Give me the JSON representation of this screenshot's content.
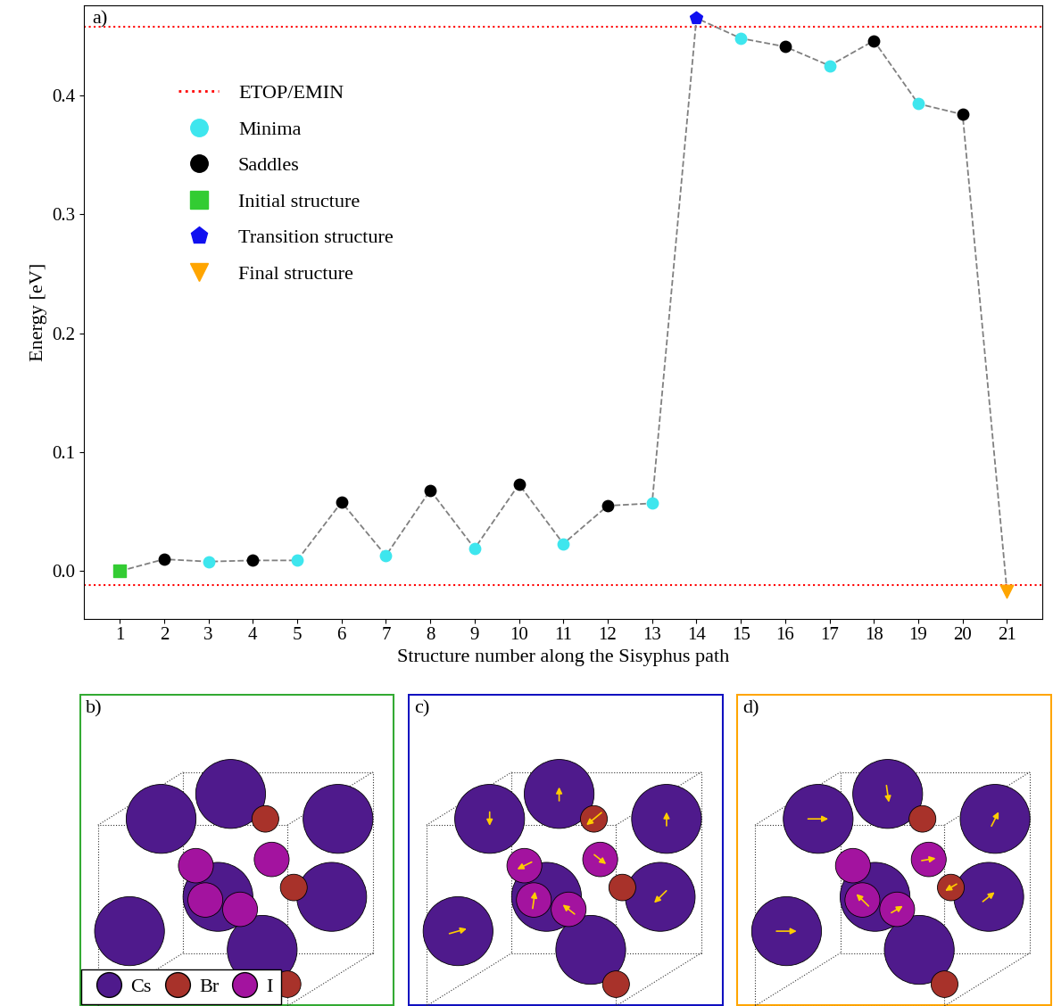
{
  "chart_data": {
    "type": "line",
    "panel_label": "a)",
    "x_label": "Structure number along the Sisyphus path",
    "y_label": "Energy [eV]",
    "color": "#808080",
    "line_style": "dashed",
    "xlim": [
      0.2,
      21.8
    ],
    "xticks": [
      1,
      2,
      3,
      4,
      5,
      6,
      7,
      8,
      9,
      10,
      11,
      12,
      13,
      14,
      15,
      16,
      17,
      18,
      19,
      20,
      21
    ],
    "ylim": [
      -0.04,
      0.476
    ],
    "yticks": [
      0.0,
      0.1,
      0.2,
      0.3,
      0.4
    ],
    "legend": "upper left",
    "reference_lines": {
      "name": "ETOP/EMIN",
      "color": "#ff0000",
      "line_style": "dotted",
      "values": [
        0.458,
        -0.012
      ]
    },
    "series": [
      {
        "name": "Minima",
        "type": "scatter",
        "color": "#3ee6ee",
        "marker": "circle",
        "x": [
          3,
          5,
          7,
          9,
          11,
          13,
          15,
          17,
          19
        ],
        "values": [
          0.008,
          0.009,
          0.013,
          0.019,
          0.023,
          0.057,
          0.448,
          0.425,
          0.393
        ]
      },
      {
        "name": "Saddles",
        "type": "scatter",
        "color": "#000000",
        "marker": "circle",
        "x": [
          2,
          4,
          6,
          8,
          10,
          12,
          16,
          18,
          20
        ],
        "values": [
          0.01,
          0.009,
          0.058,
          0.068,
          0.073,
          0.055,
          0.441,
          0.446,
          0.384
        ]
      },
      {
        "name": "Initial structure",
        "type": "scatter",
        "color": "#33cc33",
        "marker": "square",
        "x": [
          1
        ],
        "values": [
          0.0
        ]
      },
      {
        "name": "Transition structure",
        "type": "scatter",
        "color": "#1010f0",
        "marker": "pentagon",
        "x": [
          14
        ],
        "values": [
          0.465
        ]
      },
      {
        "name": "Final structure",
        "type": "scatter",
        "color": "#ffa500",
        "marker": "triangle_down",
        "x": [
          21
        ],
        "values": [
          -0.017
        ]
      }
    ]
  },
  "panels": [
    {
      "label": "b)",
      "color": "#33aa33"
    },
    {
      "label": "c)",
      "color": "#1010c0"
    },
    {
      "label": "d)",
      "color": "#ffa500"
    }
  ],
  "species": [
    {
      "name": "Cs",
      "color": "#4f1a8c"
    },
    {
      "name": "Br",
      "color": "#a8322a"
    },
    {
      "name": "I",
      "color": "#a3139f"
    }
  ]
}
